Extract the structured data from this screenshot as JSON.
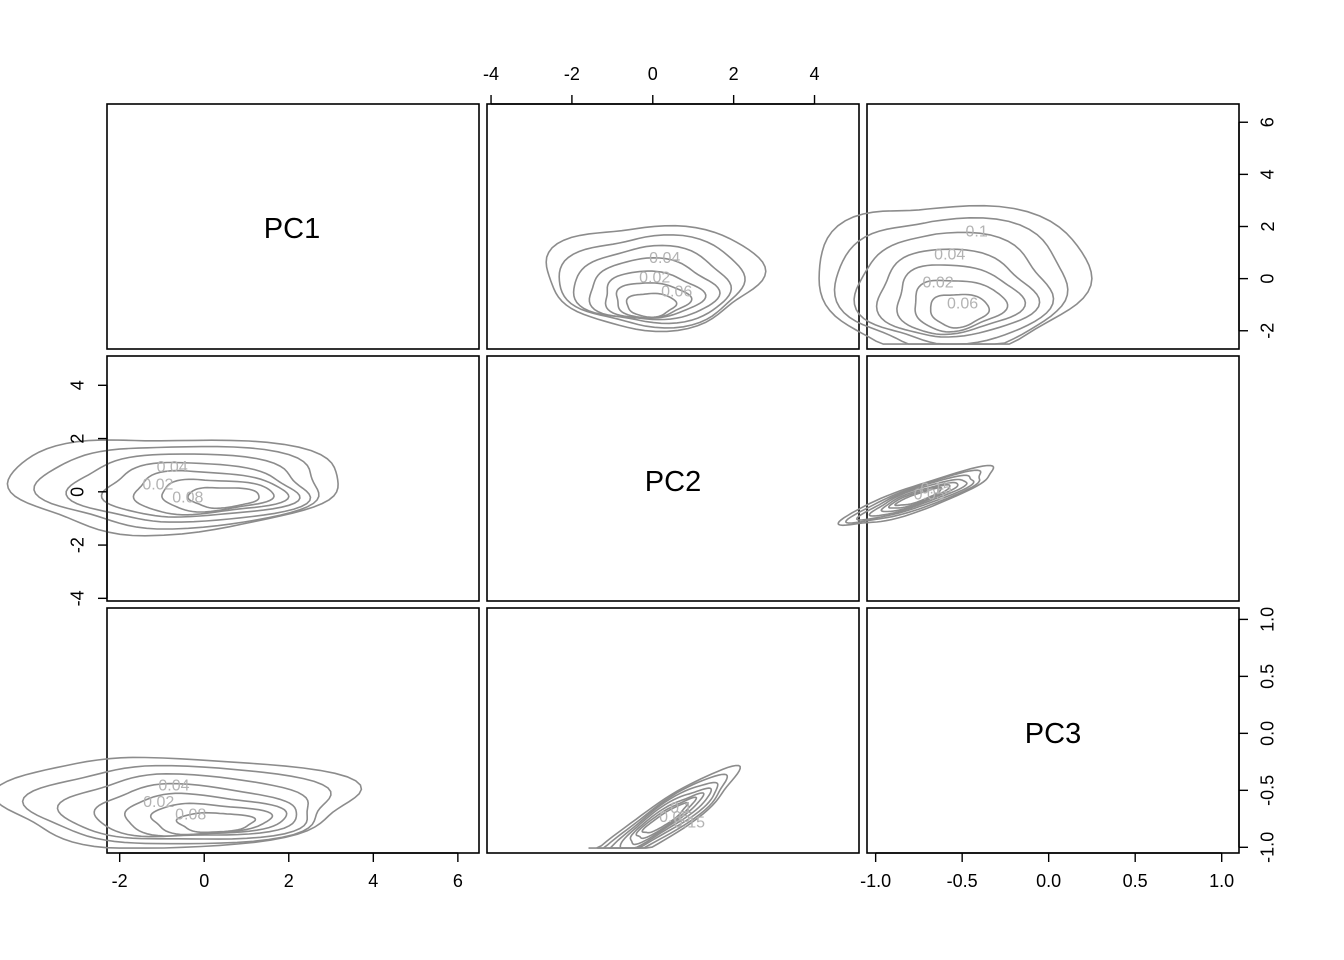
{
  "chart_data": {
    "type": "contour",
    "variables": [
      "PC1",
      "PC2",
      "PC3"
    ],
    "colors": {
      "contour": "#8c8c8c",
      "contour_label": "#b3b3b3",
      "axis": "#000000"
    },
    "axes": {
      "PC1": {
        "limits": [
          -2.3,
          6.5
        ],
        "ticks": [
          -2,
          0,
          2,
          4,
          6
        ],
        "tick_labels": [
          "-2",
          "0",
          "2",
          "4",
          "6"
        ]
      },
      "PC2_top": {
        "limits": [
          -4.1,
          5.1
        ],
        "ticks": [
          -4,
          -2,
          0,
          2,
          4
        ],
        "tick_labels": [
          "-4",
          "-2",
          "0",
          "2",
          "4"
        ]
      },
      "PC1_right": {
        "limits": [
          -2.7,
          6.7
        ],
        "ticks": [
          -2,
          0,
          2,
          4,
          6
        ],
        "tick_labels": [
          "-2",
          "0",
          "2",
          "4",
          "6"
        ]
      },
      "PC2_left": {
        "limits": [
          -4.1,
          5.1
        ],
        "ticks": [
          -4,
          -2,
          0,
          2,
          4
        ],
        "tick_labels": [
          "-4",
          "-2",
          "0",
          "2",
          "4"
        ]
      },
      "PC3": {
        "limits": [
          -1.05,
          1.1
        ],
        "ticks": [
          -1.0,
          -0.5,
          0.0,
          0.5,
          1.0
        ],
        "tick_labels": [
          "-1.0",
          "-0.5",
          "0.0",
          "0.5",
          "1.0"
        ]
      }
    },
    "panels": [
      {
        "row": 0,
        "col": 1,
        "x": "PC2",
        "y": "PC1",
        "mode": "c",
        "centers": [
          [
            -0.2,
            0.1
          ],
          [
            -0.1,
            -1.0
          ]
        ],
        "scale": [
          1.1,
          0.9
        ],
        "skew": [
          0.2,
          0.0
        ],
        "levels": [
          0.5,
          0.75,
          1.0,
          1.3,
          1.6,
          1.9,
          2.2
        ],
        "shear": 0.0,
        "labels": [
          "0.02",
          "0.04",
          "0.06"
        ]
      },
      {
        "row": 0,
        "col": 2,
        "x": "PC3",
        "y": "PC1",
        "mode": "c",
        "centers": [
          [
            -0.7,
            0.0
          ],
          [
            -0.55,
            -1.2
          ]
        ],
        "scale": [
          0.3,
          1.4
        ],
        "skew": [
          0.5,
          0.0
        ],
        "levels": [
          0.45,
          0.7,
          0.95,
          1.2,
          1.5,
          1.8,
          2.1
        ],
        "shear": 0.0,
        "labels": [
          "0.02",
          "0.04",
          "0.06",
          "0.1"
        ]
      },
      {
        "row": 1,
        "col": 0,
        "x": "PC1",
        "y": "PC2",
        "mode": "r",
        "centers": [
          [
            -1.4,
            0.3
          ],
          [
            0.3,
            -0.2
          ]
        ],
        "scale": [
          1.5,
          0.85
        ],
        "skew": [
          0.5,
          0.0
        ],
        "levels": [
          0.45,
          0.7,
          0.95,
          1.2,
          1.5,
          1.8,
          2.1
        ],
        "shear": 0.0,
        "labels": [
          "0.02",
          "0.04",
          "0.08"
        ]
      },
      {
        "row": 1,
        "col": 2,
        "x": "PC3",
        "y": "PC2",
        "mode": "diag",
        "centers": [
          [
            -0.75,
            -0.2
          ]
        ],
        "scale": [
          0.22,
          0.25
        ],
        "skew": [
          0.0,
          0.0
        ],
        "levels": [
          0.6,
          0.8,
          1.0,
          1.25,
          1.5,
          1.75,
          2.0
        ],
        "shear": 2.2,
        "labels": [
          "0.05",
          "0.15"
        ]
      },
      {
        "row": 2,
        "col": 0,
        "x": "PC1",
        "y": "PC3",
        "mode": "r",
        "centers": [
          [
            -1.4,
            -0.6
          ],
          [
            0.1,
            -0.78
          ]
        ],
        "scale": [
          1.6,
          0.19
        ],
        "skew": [
          0.5,
          0.0
        ],
        "levels": [
          0.45,
          0.7,
          0.95,
          1.2,
          1.5,
          1.8,
          2.1
        ],
        "shear": 0.0,
        "labels": [
          "0.02",
          "0.04",
          "0.08"
        ]
      },
      {
        "row": 2,
        "col": 1,
        "x": "PC2",
        "y": "PC3",
        "mode": "diag",
        "centers": [
          [
            0.3,
            -0.75
          ]
        ],
        "scale": [
          0.9,
          0.09
        ],
        "skew": [
          0.0,
          0.0
        ],
        "levels": [
          0.6,
          0.8,
          1.0,
          1.25,
          1.5,
          1.75,
          2.0
        ],
        "shear": 0.22,
        "labels": [
          "0.05",
          "0.1",
          "0.15"
        ]
      }
    ]
  }
}
